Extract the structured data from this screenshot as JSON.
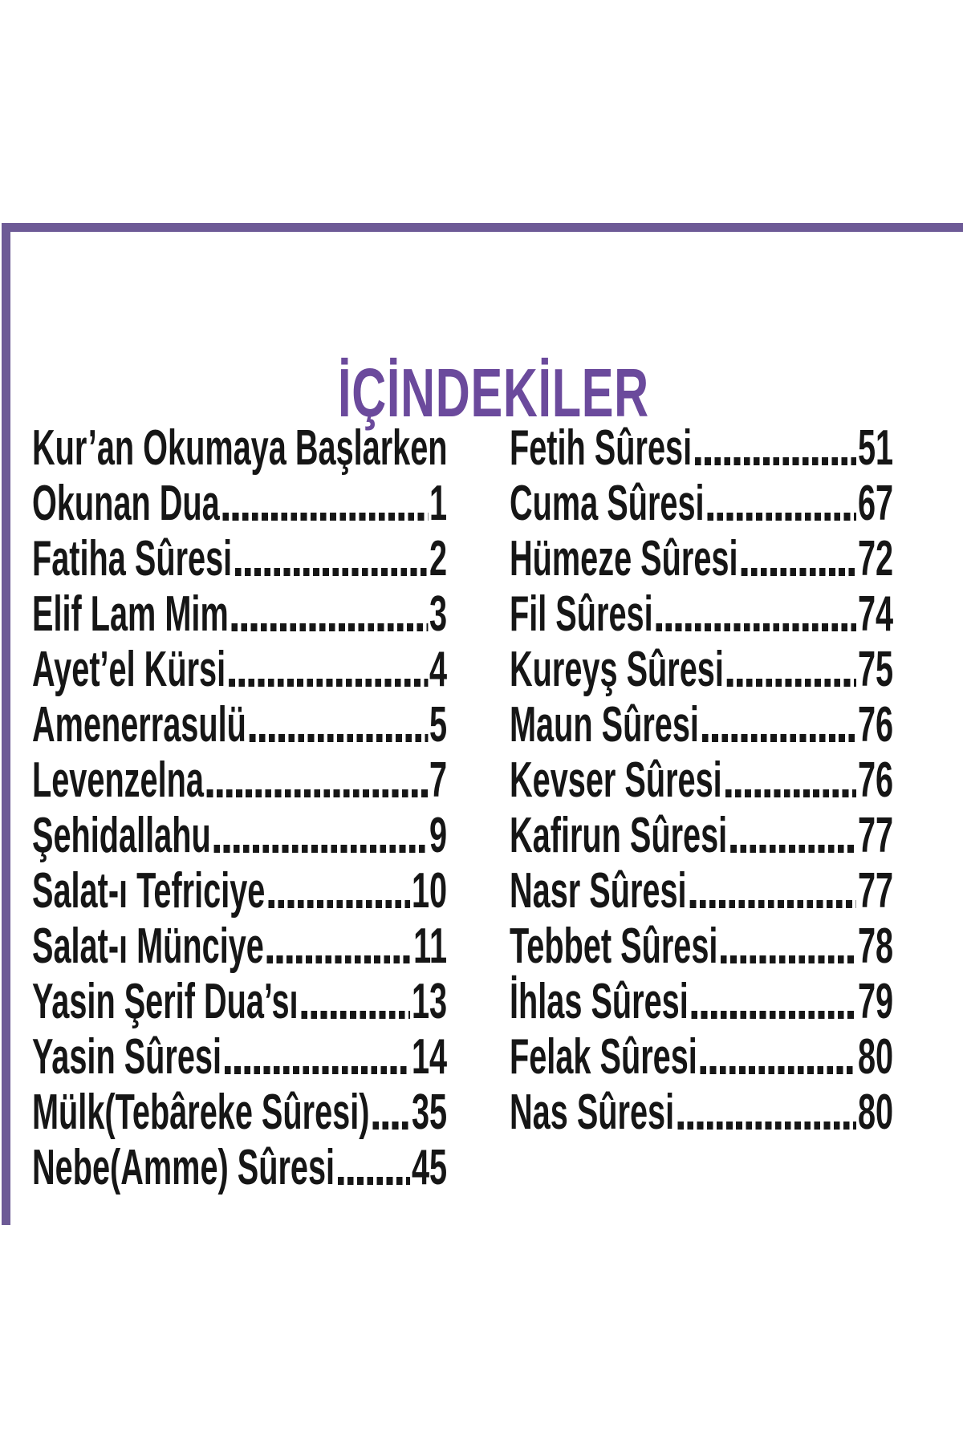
{
  "header": {
    "title": "İÇİNDEKİLER"
  },
  "colors": {
    "title_purple": "#6b4a9c",
    "frame_purple": "#6d5a96",
    "text": "#161616",
    "background": "#ffffff"
  },
  "toc": {
    "left": [
      {
        "label": "Kur’an Okumaya Başlarken",
        "page": ""
      },
      {
        "label": "Okunan Dua",
        "page": "1"
      },
      {
        "label": "Fatiha Sûresi",
        "page": "2"
      },
      {
        "label": "Elif Lam Mim",
        "page": "3"
      },
      {
        "label": "Ayet’el Kürsi",
        "page": "4"
      },
      {
        "label": "Amenerrasulü",
        "page": "5"
      },
      {
        "label": "Levenzelna",
        "page": "7"
      },
      {
        "label": "Şehidallahu",
        "page": "9"
      },
      {
        "label": "Salat-ı Tefriciye",
        "page": "10"
      },
      {
        "label": "Salat-ı Münciye",
        "page": "11"
      },
      {
        "label": "Yasin Şerif Dua’sı",
        "page": "13"
      },
      {
        "label": "Yasin Sûresi",
        "page": "14"
      },
      {
        "label": "Mülk(Tebâreke Sûresi)",
        "page": "35"
      },
      {
        "label": "Nebe(Amme) Sûresi",
        "page": "45"
      }
    ],
    "right": [
      {
        "label": "Fetih Sûresi",
        "page": "51"
      },
      {
        "label": "Cuma Sûresi",
        "page": "67"
      },
      {
        "label": "Hümeze Sûresi",
        "page": "72"
      },
      {
        "label": "Fil Sûresi",
        "page": "74"
      },
      {
        "label": "Kureyş Sûresi",
        "page": "75"
      },
      {
        "label": "Maun Sûresi",
        "page": "76"
      },
      {
        "label": "Kevser Sûresi",
        "page": "76"
      },
      {
        "label": "Kafirun Sûresi",
        "page": "77"
      },
      {
        "label": "Nasr Sûresi",
        "page": "77"
      },
      {
        "label": "Tebbet Sûresi",
        "page": "78"
      },
      {
        "label": "İhlas Sûresi",
        "page": "79"
      },
      {
        "label": "Felak Sûresi",
        "page": "80"
      },
      {
        "label": "Nas Sûresi",
        "page": "80"
      }
    ]
  }
}
